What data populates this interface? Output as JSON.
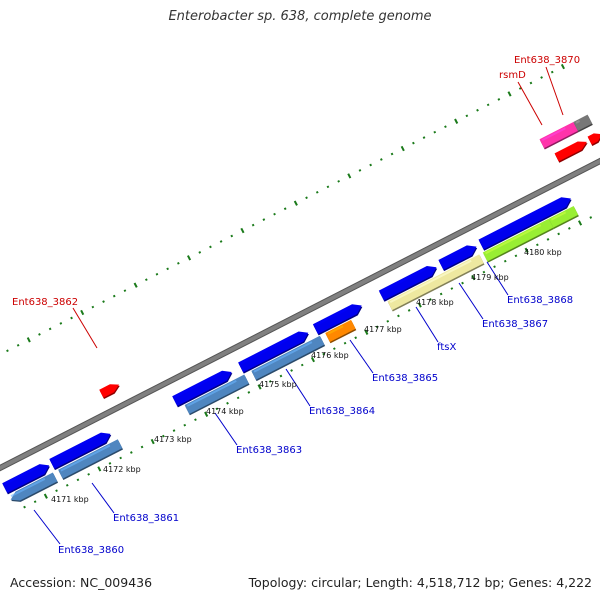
{
  "title": "Enterobacter sp. 638, complete genome",
  "footer": {
    "accession": "Accession: NC_009436",
    "summary": "Topology: circular; Length: 4,518,712 bp; Genes: 4,222"
  },
  "colors": {
    "backbone": "#808080",
    "tick": "#1a7a1a",
    "label_gene_forward": "#cc0000",
    "label_gene_reverse": "#0000cc",
    "cds": "#0000ee"
  },
  "kbp_ticks": [
    "4171 kbp",
    "4172 kbp",
    "4173 kbp",
    "4174 kbp",
    "4175 kbp",
    "4176 kbp",
    "4177 kbp",
    "4178 kbp",
    "4179 kbp",
    "4180 kbp"
  ],
  "genes_forward": [
    {
      "label": "Ent638_3862",
      "color": "#ff0000"
    },
    {
      "label": "rsmD",
      "color": "#ff33aa"
    },
    {
      "label": "Ent638_3870",
      "color": "#777777"
    },
    {
      "label": "",
      "color": "#ff0000"
    },
    {
      "label": "",
      "color": "#ff0000"
    }
  ],
  "genes_reverse": [
    {
      "label": "Ent638_3860",
      "color": "#4f86c0"
    },
    {
      "label": "Ent638_3861",
      "color": "#4f86c0"
    },
    {
      "label": "Ent638_3863",
      "color": "#4f86c0"
    },
    {
      "label": "Ent638_3864",
      "color": "#4f86c0"
    },
    {
      "label": "Ent638_3865",
      "color": "#ff8800"
    },
    {
      "label": "ftsX",
      "color": "#eee8a0"
    },
    {
      "label": "Ent638_3867",
      "color": "#eee8a0"
    },
    {
      "label": "Ent638_3868",
      "color": "#99ee33"
    }
  ]
}
